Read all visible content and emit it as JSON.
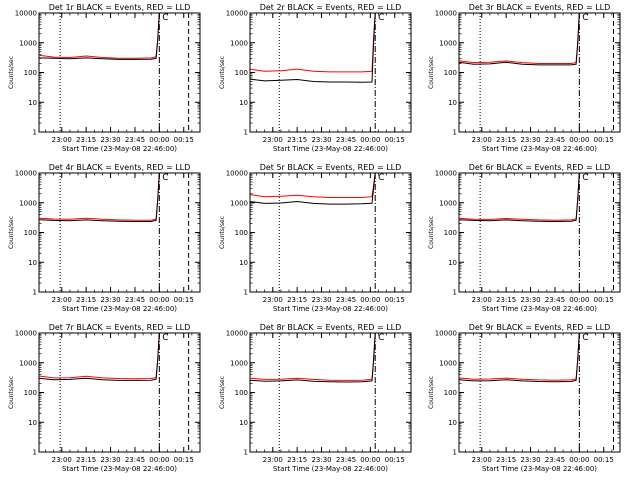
{
  "figure": {
    "background": "#ffffff",
    "event_color": "#000000",
    "lld_color": "#ff0000",
    "marker_label": "C"
  },
  "chart_data": [
    {
      "type": "line",
      "title": "Det 1r BLACK = Events, RED = LLD",
      "xlabel": "Start Time (23-May-08 22:46:00)",
      "ylabel": "Counts/sec",
      "y_scale": "log",
      "ylim": [
        1,
        10000
      ],
      "xlim": [
        "22:46",
        "00:25"
      ],
      "x_ticks": [
        "23:00",
        "23:15",
        "23:30",
        "23:45",
        "00:00",
        "00:15"
      ],
      "y_ticks": [
        "1",
        "10",
        "100",
        "1000",
        "10000"
      ],
      "dotted_line_at": "22:59",
      "dashdot_line_at": "00:00",
      "dashed_line_at": "00:18",
      "series": [
        {
          "name": "BLACK = Events",
          "x": [
            "22:46",
            "22:55",
            "23:05",
            "23:15",
            "23:25",
            "23:35",
            "23:45",
            "23:55",
            "23:58",
            "23:59",
            "00:00"
          ],
          "values": [
            310,
            300,
            290,
            310,
            290,
            275,
            275,
            280,
            300,
            1200,
            10000
          ]
        },
        {
          "name": "RED = LLD",
          "x": [
            "22:46",
            "22:55",
            "23:05",
            "23:15",
            "23:25",
            "23:35",
            "23:45",
            "23:55",
            "23:58",
            "23:59",
            "00:00"
          ],
          "values": [
            380,
            330,
            320,
            360,
            320,
            300,
            300,
            310,
            340,
            1300,
            10000
          ]
        }
      ]
    },
    {
      "type": "line",
      "title": "Det 2r BLACK = Events, RED = LLD",
      "xlabel": "Start Time (23-May-08 22:46:00)",
      "ylabel": "Counts/sec",
      "y_scale": "log",
      "ylim": [
        1,
        10000
      ],
      "xlim": [
        "22:46",
        "00:25"
      ],
      "x_ticks": [
        "23:00",
        "23:15",
        "23:30",
        "23:45",
        "00:00",
        "00:15"
      ],
      "y_ticks": [
        "1",
        "10",
        "100",
        "1000",
        "10000"
      ],
      "dotted_line_at": "23:04",
      "dashdot_line_at": "00:03",
      "dashed_line_at": "",
      "series": [
        {
          "name": "BLACK = Events",
          "x": [
            "22:46",
            "22:55",
            "23:05",
            "23:15",
            "23:25",
            "23:35",
            "23:45",
            "23:55",
            "00:01",
            "00:02",
            "00:03"
          ],
          "values": [
            60,
            52,
            55,
            58,
            50,
            48,
            48,
            47,
            48,
            1000,
            10000
          ]
        },
        {
          "name": "RED = LLD",
          "x": [
            "22:46",
            "22:55",
            "23:05",
            "23:15",
            "23:25",
            "23:35",
            "23:45",
            "23:55",
            "00:01",
            "00:02",
            "00:03"
          ],
          "values": [
            130,
            110,
            115,
            130,
            110,
            105,
            105,
            105,
            110,
            1500,
            10000
          ]
        }
      ]
    },
    {
      "type": "line",
      "title": "Det 3r BLACK = Events, RED = LLD",
      "xlabel": "Start Time (23-May-08 22:46:00)",
      "ylabel": "Counts/sec",
      "y_scale": "log",
      "ylim": [
        1,
        10000
      ],
      "xlim": [
        "22:46",
        "00:25"
      ],
      "x_ticks": [
        "23:00",
        "23:15",
        "23:30",
        "23:45",
        "00:00",
        "00:15"
      ],
      "y_ticks": [
        "1",
        "10",
        "100",
        "1000",
        "10000"
      ],
      "dotted_line_at": "22:59",
      "dashdot_line_at": "00:00",
      "dashed_line_at": "00:21",
      "series": [
        {
          "name": "BLACK = Events",
          "x": [
            "22:46",
            "22:55",
            "23:05",
            "23:15",
            "23:25",
            "23:35",
            "23:45",
            "23:55",
            "23:58",
            "23:59",
            "00:00"
          ],
          "values": [
            220,
            190,
            195,
            220,
            190,
            180,
            180,
            180,
            190,
            900,
            10000
          ]
        },
        {
          "name": "RED = LLD",
          "x": [
            "22:46",
            "22:55",
            "23:05",
            "23:15",
            "23:25",
            "23:35",
            "23:45",
            "23:55",
            "23:58",
            "23:59",
            "00:00"
          ],
          "values": [
            250,
            215,
            220,
            245,
            215,
            200,
            200,
            200,
            215,
            1000,
            10000
          ]
        }
      ]
    },
    {
      "type": "line",
      "title": "Det 4r BLACK = Events, RED = LLD",
      "xlabel": "Start Time (23-May-08 22:46:00)",
      "ylabel": "Counts/sec",
      "y_scale": "log",
      "ylim": [
        1,
        10000
      ],
      "xlim": [
        "22:46",
        "00:25"
      ],
      "x_ticks": [
        "23:00",
        "23:15",
        "23:30",
        "23:45",
        "00:00",
        "00:15"
      ],
      "y_ticks": [
        "1",
        "10",
        "100",
        "1000",
        "10000"
      ],
      "dotted_line_at": "22:59",
      "dashdot_line_at": "00:00",
      "dashed_line_at": "00:18",
      "series": [
        {
          "name": "BLACK = Events",
          "x": [
            "22:46",
            "22:55",
            "23:05",
            "23:15",
            "23:25",
            "23:35",
            "23:45",
            "23:55",
            "23:58",
            "23:59",
            "00:00"
          ],
          "values": [
            270,
            255,
            250,
            265,
            250,
            240,
            235,
            235,
            255,
            1200,
            10000
          ]
        },
        {
          "name": "RED = LLD",
          "x": [
            "22:46",
            "22:55",
            "23:05",
            "23:15",
            "23:25",
            "23:35",
            "23:45",
            "23:55",
            "23:58",
            "23:59",
            "00:00"
          ],
          "values": [
            300,
            285,
            280,
            300,
            280,
            265,
            260,
            260,
            285,
            1300,
            10000
          ]
        }
      ]
    },
    {
      "type": "line",
      "title": "Det 5r BLACK = Events, RED = LLD",
      "xlabel": "Start Time (23-May-08 22:46:00)",
      "ylabel": "Counts/sec",
      "y_scale": "log",
      "ylim": [
        1,
        10000
      ],
      "xlim": [
        "22:46",
        "00:25"
      ],
      "x_ticks": [
        "23:00",
        "23:15",
        "23:30",
        "23:45",
        "00:00",
        "00:15"
      ],
      "y_ticks": [
        "1",
        "10",
        "100",
        "1000",
        "10000"
      ],
      "dotted_line_at": "23:04",
      "dashdot_line_at": "00:03",
      "dashed_line_at": "",
      "series": [
        {
          "name": "BLACK = Events",
          "x": [
            "22:46",
            "22:55",
            "23:05",
            "23:15",
            "23:25",
            "23:35",
            "23:45",
            "23:55",
            "00:01",
            "00:02",
            "00:03"
          ],
          "values": [
            1100,
            950,
            980,
            1100,
            950,
            900,
            900,
            920,
            960,
            3000,
            10000
          ]
        },
        {
          "name": "RED = LLD",
          "x": [
            "22:46",
            "22:55",
            "23:05",
            "23:15",
            "23:25",
            "23:35",
            "23:45",
            "23:55",
            "00:01",
            "00:02",
            "00:03"
          ],
          "values": [
            1900,
            1600,
            1650,
            1800,
            1600,
            1500,
            1500,
            1500,
            1600,
            4000,
            10000
          ]
        }
      ]
    },
    {
      "type": "line",
      "title": "Det 6r BLACK = Events, RED = LLD",
      "xlabel": "Start Time (23-May-08 22:46:00)",
      "ylabel": "Counts/sec",
      "y_scale": "log",
      "ylim": [
        1,
        10000
      ],
      "xlim": [
        "22:46",
        "00:25"
      ],
      "x_ticks": [
        "23:00",
        "23:15",
        "23:30",
        "23:45",
        "00:00",
        "00:15"
      ],
      "y_ticks": [
        "1",
        "10",
        "100",
        "1000",
        "10000"
      ],
      "dotted_line_at": "22:59",
      "dashdot_line_at": "00:00",
      "dashed_line_at": "00:21",
      "series": [
        {
          "name": "BLACK = Events",
          "x": [
            "22:46",
            "22:55",
            "23:05",
            "23:15",
            "23:25",
            "23:35",
            "23:45",
            "23:55",
            "23:58",
            "23:59",
            "00:00"
          ],
          "values": [
            270,
            255,
            250,
            265,
            250,
            240,
            235,
            240,
            260,
            1200,
            10000
          ]
        },
        {
          "name": "RED = LLD",
          "x": [
            "22:46",
            "22:55",
            "23:05",
            "23:15",
            "23:25",
            "23:35",
            "23:45",
            "23:55",
            "23:58",
            "23:59",
            "00:00"
          ],
          "values": [
            300,
            280,
            275,
            295,
            280,
            265,
            260,
            265,
            285,
            1300,
            10000
          ]
        }
      ]
    },
    {
      "type": "line",
      "title": "Det 7r BLACK = Events, RED = LLD",
      "xlabel": "Start Time (23-May-08 22:46:00)",
      "ylabel": "Counts/sec",
      "y_scale": "log",
      "ylim": [
        1,
        10000
      ],
      "xlim": [
        "22:46",
        "00:25"
      ],
      "x_ticks": [
        "23:00",
        "23:15",
        "23:30",
        "23:45",
        "00:00",
        "00:15"
      ],
      "y_ticks": [
        "1",
        "10",
        "100",
        "1000",
        "10000"
      ],
      "dotted_line_at": "22:59",
      "dashdot_line_at": "00:00",
      "dashed_line_at": "00:18",
      "series": [
        {
          "name": "BLACK = Events",
          "x": [
            "22:46",
            "22:55",
            "23:05",
            "23:15",
            "23:25",
            "23:35",
            "23:45",
            "23:55",
            "23:58",
            "23:59",
            "00:00"
          ],
          "values": [
            300,
            270,
            275,
            300,
            270,
            255,
            255,
            260,
            280,
            1200,
            10000
          ]
        },
        {
          "name": "RED = LLD",
          "x": [
            "22:46",
            "22:55",
            "23:05",
            "23:15",
            "23:25",
            "23:35",
            "23:45",
            "23:55",
            "23:58",
            "23:59",
            "00:00"
          ],
          "values": [
            360,
            310,
            315,
            350,
            310,
            295,
            290,
            295,
            320,
            1300,
            10000
          ]
        }
      ]
    },
    {
      "type": "line",
      "title": "Det 8r BLACK = Events, RED = LLD",
      "xlabel": "Start Time (23-May-08 22:46:00)",
      "ylabel": "Counts/sec",
      "y_scale": "log",
      "ylim": [
        1,
        10000
      ],
      "xlim": [
        "22:46",
        "00:25"
      ],
      "x_ticks": [
        "23:00",
        "23:15",
        "23:30",
        "23:45",
        "00:00",
        "00:15"
      ],
      "y_ticks": [
        "1",
        "10",
        "100",
        "1000",
        "10000"
      ],
      "dotted_line_at": "23:04",
      "dashdot_line_at": "00:03",
      "dashed_line_at": "",
      "series": [
        {
          "name": "BLACK = Events",
          "x": [
            "22:46",
            "22:55",
            "23:05",
            "23:15",
            "23:25",
            "23:35",
            "23:45",
            "23:55",
            "00:01",
            "00:02",
            "00:03"
          ],
          "values": [
            260,
            240,
            245,
            265,
            240,
            230,
            225,
            230,
            245,
            1200,
            10000
          ]
        },
        {
          "name": "RED = LLD",
          "x": [
            "22:46",
            "22:55",
            "23:05",
            "23:15",
            "23:25",
            "23:35",
            "23:45",
            "23:55",
            "00:01",
            "00:02",
            "00:03"
          ],
          "values": [
            300,
            275,
            280,
            300,
            275,
            260,
            255,
            260,
            280,
            1300,
            10000
          ]
        }
      ]
    },
    {
      "type": "line",
      "title": "Det 9r BLACK = Events, RED = LLD",
      "xlabel": "Start Time (23-May-08 22:46:00)",
      "ylabel": "Counts/sec",
      "y_scale": "log",
      "ylim": [
        1,
        10000
      ],
      "xlim": [
        "22:46",
        "00:25"
      ],
      "x_ticks": [
        "23:00",
        "23:15",
        "23:30",
        "23:45",
        "00:00",
        "00:15"
      ],
      "y_ticks": [
        "1",
        "10",
        "100",
        "1000",
        "10000"
      ],
      "dotted_line_at": "22:59",
      "dashdot_line_at": "00:00",
      "dashed_line_at": "00:21",
      "series": [
        {
          "name": "BLACK = Events",
          "x": [
            "22:46",
            "22:55",
            "23:05",
            "23:15",
            "23:25",
            "23:35",
            "23:45",
            "23:55",
            "23:58",
            "23:59",
            "00:00"
          ],
          "values": [
            270,
            245,
            250,
            270,
            245,
            235,
            230,
            235,
            255,
            1200,
            10000
          ]
        },
        {
          "name": "RED = LLD",
          "x": [
            "22:46",
            "22:55",
            "23:05",
            "23:15",
            "23:25",
            "23:35",
            "23:45",
            "23:55",
            "23:58",
            "23:59",
            "00:00"
          ],
          "values": [
            310,
            280,
            285,
            305,
            280,
            265,
            260,
            265,
            285,
            1300,
            10000
          ]
        }
      ]
    }
  ]
}
